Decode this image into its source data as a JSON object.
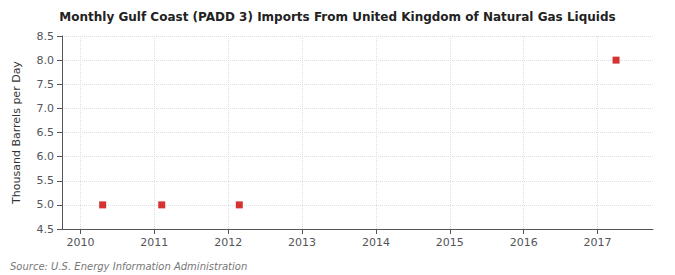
{
  "chart_data": {
    "type": "scatter",
    "title": "Monthly Gulf Coast (PADD 3) Imports From United Kingdom of Natural Gas Liquids",
    "y_label": "Thousand Barrels per Day",
    "annotations": [
      "Source: U.S. Energy Information Administration"
    ],
    "x": [
      2010.3,
      2011.1,
      2012.15,
      2017.25
    ],
    "values": [
      5.0,
      5.0,
      5.0,
      8.0
    ],
    "color": "#cc0000",
    "marker": "square",
    "xlim": [
      2009.75,
      2017.75
    ],
    "xticks": [
      2010,
      2011,
      2012,
      2013,
      2014,
      2015,
      2016,
      2017
    ],
    "ylim": [
      4.5,
      8.5
    ],
    "yticks": [
      4.5,
      {
        "value": 5.0,
        "label": "5.0"
      },
      5.5,
      {
        "value": 6.0,
        "label": "6.0"
      },
      6.5,
      {
        "value": 7.0,
        "label": "7.0"
      },
      7.5,
      {
        "value": 8.0,
        "label": "8.0"
      },
      8.5
    ],
    "grid": true
  }
}
